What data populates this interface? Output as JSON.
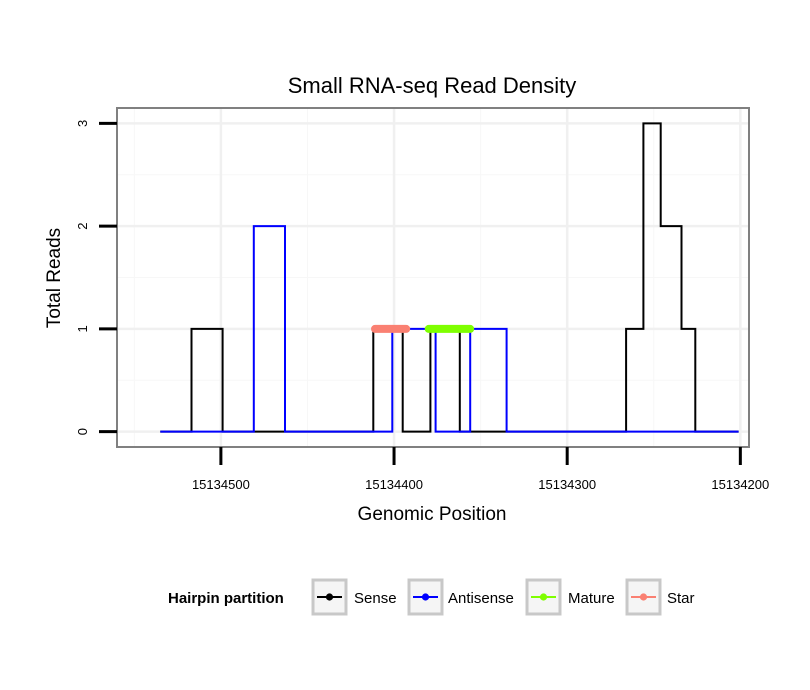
{
  "chart_data": {
    "type": "line",
    "title": "Small RNA-seq Read Density",
    "xlabel": "Genomic Position",
    "ylabel": "Total Reads",
    "x_reversed": true,
    "xlim": [
      15134560,
      15134195
    ],
    "ylim": [
      -0.15,
      3.15
    ],
    "x_ticks": [
      15134500,
      15134400,
      15134300,
      15134200
    ],
    "x_tick_labels": [
      "15134500",
      "15134400",
      "15134300",
      "15134200"
    ],
    "y_ticks": [
      0,
      1,
      2,
      3
    ],
    "y_tick_labels": [
      "0",
      "1",
      "2",
      "3"
    ],
    "grid": true,
    "legend": {
      "title": "Hairpin partition",
      "position": "bottom",
      "items": [
        {
          "name": "Sense",
          "color": "#000000"
        },
        {
          "name": "Antisense",
          "color": "#0000ff"
        },
        {
          "name": "Mature",
          "color": "#7fff00"
        },
        {
          "name": "Star",
          "color": "#fa8072"
        }
      ]
    },
    "series": [
      {
        "name": "Sense",
        "color": "#000000",
        "x": [
          15134535,
          15134517,
          15134517,
          15134499,
          15134499,
          15134412,
          15134412,
          15134395,
          15134395,
          15134379,
          15134379,
          15134362,
          15134362,
          15134266,
          15134266,
          15134256,
          15134256,
          15134246,
          15134246,
          15134234,
          15134234,
          15134226,
          15134226,
          15134201,
          15134201
        ],
        "y": [
          0,
          0,
          1,
          1,
          0,
          0,
          1,
          1,
          0,
          0,
          1,
          1,
          0,
          0,
          1,
          1,
          3,
          3,
          2,
          2,
          1,
          1,
          0,
          0,
          0
        ]
      },
      {
        "name": "Antisense",
        "color": "#0000ff",
        "x": [
          15134535,
          15134481,
          15134481,
          15134463,
          15134463,
          15134401,
          15134401,
          15134376,
          15134376,
          15134356,
          15134356,
          15134335,
          15134335,
          15134201
        ],
        "y": [
          0,
          0,
          2,
          2,
          0,
          0,
          1,
          1,
          0,
          0,
          1,
          1,
          0,
          0
        ]
      },
      {
        "name": "Mature",
        "color": "#7fff00",
        "x": [
          15134380,
          15134356
        ],
        "y": [
          1,
          1
        ]
      },
      {
        "name": "Star",
        "color": "#fa8072",
        "x": [
          15134411,
          15134393
        ],
        "y": [
          1,
          1
        ]
      }
    ]
  }
}
